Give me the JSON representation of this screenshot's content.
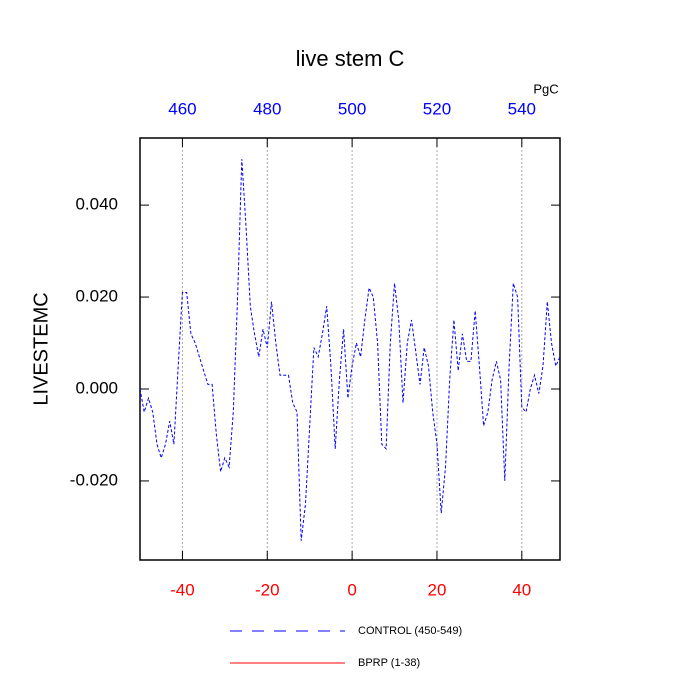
{
  "chart_data": {
    "type": "line",
    "title": "live stem C",
    "ylabel": "LIVESTEMC",
    "x2label": "PgC",
    "x": [
      -50,
      -49,
      -48,
      -47,
      -46,
      -45,
      -44,
      -43,
      -42,
      -41,
      -40,
      -39,
      -38,
      -37,
      -36,
      -35,
      -34,
      -33,
      -32,
      -31,
      -30,
      -29,
      -28,
      -27,
      -26,
      -25,
      -24,
      -23,
      -22,
      -21,
      -20,
      -19,
      -18,
      -17,
      -16,
      -15,
      -14,
      -13,
      -12,
      -11,
      -10,
      -9,
      -8,
      -7,
      -6,
      -5,
      -4,
      -3,
      -2,
      -1,
      0,
      1,
      2,
      3,
      4,
      5,
      6,
      7,
      8,
      9,
      10,
      11,
      12,
      13,
      14,
      15,
      16,
      17,
      18,
      19,
      20,
      21,
      22,
      23,
      24,
      25,
      26,
      27,
      28,
      29,
      30,
      31,
      32,
      33,
      34,
      35,
      36,
      37,
      38,
      39,
      40,
      41,
      42,
      43,
      44,
      45,
      46,
      47,
      48,
      49
    ],
    "series": [
      {
        "name": "CONTROL (450-549)",
        "color": "#0000ff",
        "dash": "dashed",
        "values": [
          0.0,
          -0.005,
          -0.002,
          -0.005,
          -0.012,
          -0.015,
          -0.012,
          -0.007,
          -0.012,
          0.005,
          0.021,
          0.021,
          0.012,
          0.01,
          0.007,
          0.004,
          0.001,
          0.001,
          -0.01,
          -0.018,
          -0.015,
          -0.017,
          -0.005,
          0.02,
          0.05,
          0.035,
          0.018,
          0.012,
          0.007,
          0.013,
          0.009,
          0.019,
          0.01,
          0.003,
          0.003,
          0.003,
          -0.003,
          -0.005,
          -0.033,
          -0.025,
          -0.008,
          0.009,
          0.007,
          0.012,
          0.018,
          0.005,
          -0.013,
          0.002,
          0.013,
          -0.002,
          0.005,
          0.01,
          0.007,
          0.015,
          0.022,
          0.02,
          0.01,
          -0.012,
          -0.013,
          0.01,
          0.023,
          0.015,
          -0.003,
          0.01,
          0.015,
          0.008,
          0.001,
          0.009,
          0.005,
          -0.005,
          -0.012,
          -0.027,
          -0.017,
          0.002,
          0.015,
          0.004,
          0.012,
          0.006,
          0.006,
          0.017,
          0.005,
          -0.008,
          -0.005,
          0.002,
          0.006,
          0.002,
          -0.02,
          0.005,
          0.023,
          0.02,
          -0.004,
          -0.005,
          0.0,
          0.003,
          -0.001,
          0.005,
          0.019,
          0.01,
          0.005,
          0.007
        ]
      },
      {
        "name": "BPRP (1-38)",
        "color": "#ff0000",
        "dash": "solid",
        "values": [
          null,
          null,
          null,
          null,
          null,
          null,
          null,
          null,
          null,
          null,
          null,
          null,
          null,
          null,
          null,
          null,
          null,
          null,
          null,
          null,
          null,
          null,
          null,
          null,
          null,
          null,
          null,
          null,
          null,
          null,
          null,
          null,
          null,
          null,
          null,
          null,
          null,
          null,
          null,
          null,
          null,
          null,
          null,
          null,
          null,
          null,
          null,
          null,
          null,
          null,
          null,
          null,
          null,
          null,
          null,
          null,
          null,
          null,
          null,
          null,
          null,
          null,
          null,
          null,
          null,
          null,
          null,
          null,
          null,
          null,
          null,
          null,
          null,
          null,
          null,
          null,
          null,
          null,
          null,
          null,
          null,
          null,
          null,
          null,
          null,
          null,
          null,
          null,
          null,
          null,
          null,
          null,
          null,
          null,
          null,
          null,
          null,
          null,
          null,
          null
        ]
      }
    ],
    "xlim": [
      -50,
      49
    ],
    "xticks": [
      -40,
      -20,
      0,
      20,
      40
    ],
    "xtick_color": "#ff0000",
    "x2lim": [
      450,
      549
    ],
    "x2ticks": [
      460,
      480,
      500,
      520,
      540
    ],
    "x2tick_color": "#0000ff",
    "ylim": [
      -0.0372,
      0.0546
    ],
    "yticks": [
      {
        "value": -0.02,
        "label": "-0.020"
      },
      {
        "value": 0,
        "label": "0.000"
      },
      {
        "value": 0.02,
        "label": "0.020"
      },
      {
        "value": 0.04,
        "label": "0.040"
      }
    ],
    "grid": "x",
    "legend": "bottom"
  }
}
